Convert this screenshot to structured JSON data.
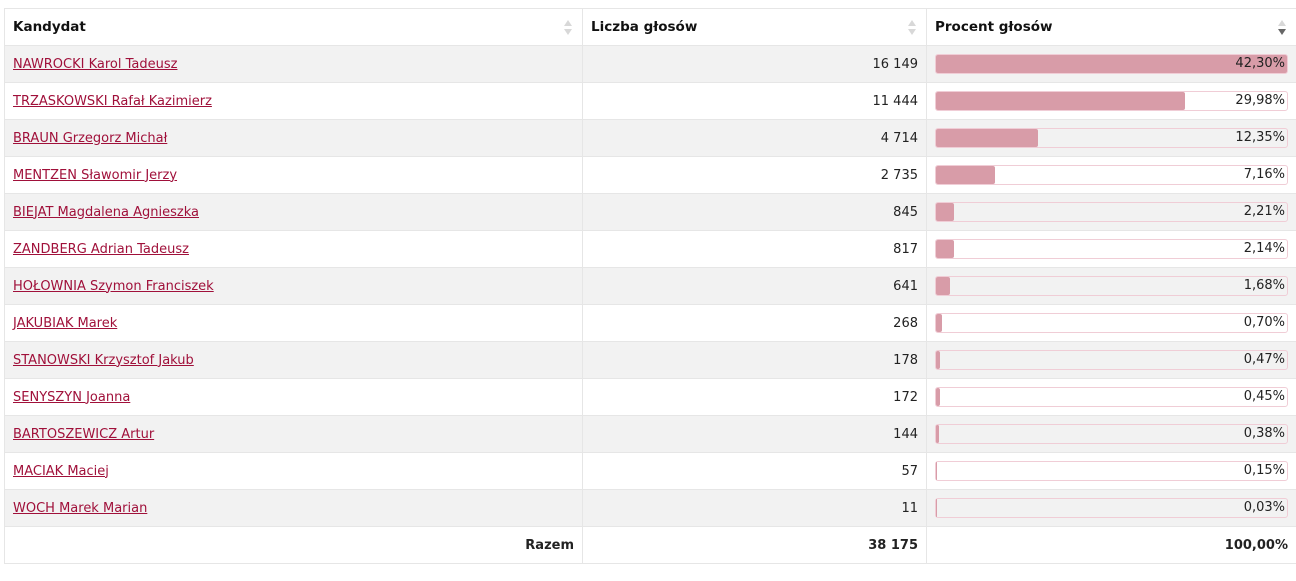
{
  "headers": {
    "candidate": "Kandydat",
    "votes": "Liczba głosów",
    "percent": "Procent głosów"
  },
  "sort": {
    "column": "percent",
    "direction": "descending"
  },
  "colors": {
    "link": "#a0103a",
    "bar": "#d89ca8",
    "bar_border": "#f0cdd6"
  },
  "rows": [
    {
      "name": "NAWROCKI Karol Tadeusz",
      "votes": "16 149",
      "percent": "42,30%",
      "value": 42.3
    },
    {
      "name": "TRZASKOWSKI Rafał Kazimierz",
      "votes": "11 444",
      "percent": "29,98%",
      "value": 29.98
    },
    {
      "name": "BRAUN Grzegorz Michał",
      "votes": "4 714",
      "percent": "12,35%",
      "value": 12.35
    },
    {
      "name": "MENTZEN Sławomir Jerzy",
      "votes": "2 735",
      "percent": "7,16%",
      "value": 7.16
    },
    {
      "name": "BIEJAT Magdalena Agnieszka",
      "votes": "845",
      "percent": "2,21%",
      "value": 2.21
    },
    {
      "name": "ZANDBERG Adrian Tadeusz",
      "votes": "817",
      "percent": "2,14%",
      "value": 2.14
    },
    {
      "name": "HOŁOWNIA Szymon Franciszek",
      "votes": "641",
      "percent": "1,68%",
      "value": 1.68
    },
    {
      "name": "JAKUBIAK Marek",
      "votes": "268",
      "percent": "0,70%",
      "value": 0.7
    },
    {
      "name": "STANOWSKI Krzysztof Jakub",
      "votes": "178",
      "percent": "0,47%",
      "value": 0.47
    },
    {
      "name": "SENYSZYN Joanna",
      "votes": "172",
      "percent": "0,45%",
      "value": 0.45
    },
    {
      "name": "BARTOSZEWICZ Artur",
      "votes": "144",
      "percent": "0,38%",
      "value": 0.38
    },
    {
      "name": "MACIAK Maciej",
      "votes": "57",
      "percent": "0,15%",
      "value": 0.15
    },
    {
      "name": "WOCH Marek Marian",
      "votes": "11",
      "percent": "0,03%",
      "value": 0.03
    }
  ],
  "footer": {
    "label": "Razem",
    "votes": "38 175",
    "percent": "100,00%"
  }
}
